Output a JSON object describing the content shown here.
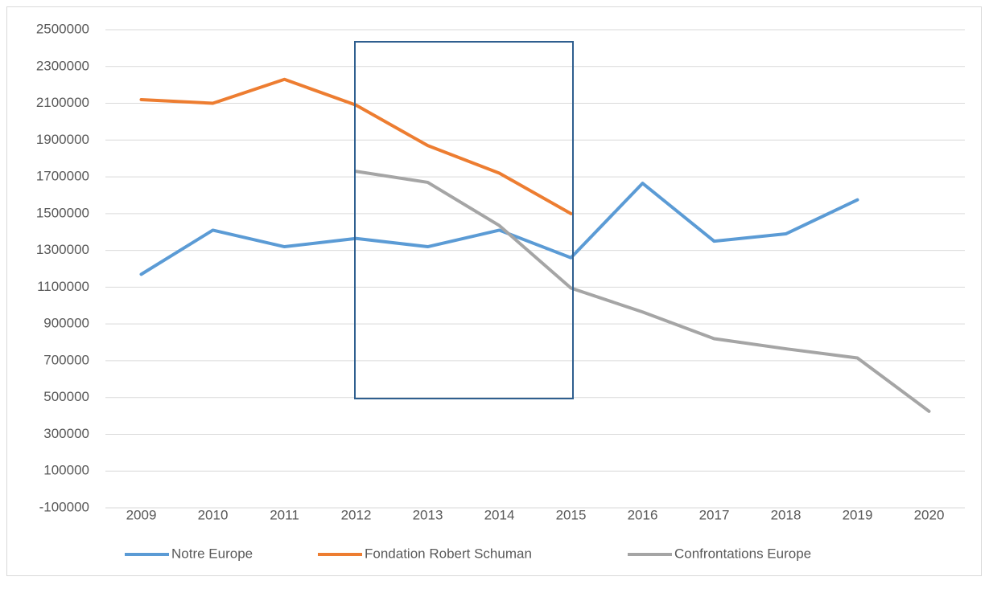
{
  "chart_data": {
    "type": "line",
    "categories": [
      "2009",
      "2010",
      "2011",
      "2012",
      "2013",
      "2014",
      "2015",
      "2016",
      "2017",
      "2018",
      "2019",
      "2020"
    ],
    "series": [
      {
        "name": "Notre Europe",
        "color": "#5b9bd5",
        "values": [
          1170000,
          1410000,
          1320000,
          1365000,
          1320000,
          1410000,
          1260000,
          1665000,
          1350000,
          1390000,
          1575000,
          null
        ]
      },
      {
        "name": "Fondation Robert Schuman",
        "color": "#ed7d31",
        "values": [
          2120000,
          2100000,
          2230000,
          2090000,
          1870000,
          1720000,
          1500000,
          null,
          null,
          null,
          null,
          null
        ]
      },
      {
        "name": "Confrontations Europe",
        "color": "#a5a5a5",
        "values": [
          null,
          null,
          null,
          1730000,
          1670000,
          1435000,
          1095000,
          965000,
          820000,
          765000,
          715000,
          425000
        ]
      }
    ],
    "ylim": [
      -100000,
      2500000
    ],
    "yticks": [
      -100000,
      100000,
      300000,
      500000,
      700000,
      900000,
      1100000,
      1300000,
      1500000,
      1700000,
      1900000,
      2100000,
      2300000,
      2500000
    ],
    "grid": true,
    "legend": "bottom"
  }
}
